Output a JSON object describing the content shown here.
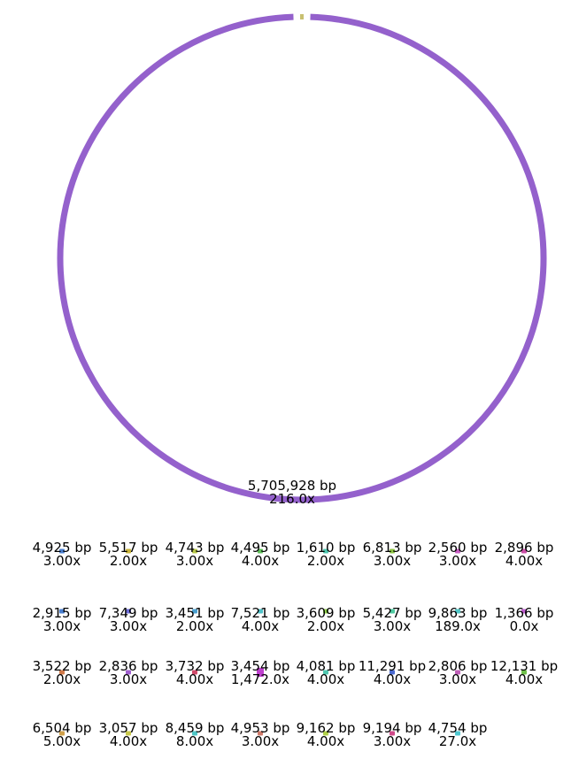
{
  "main_contig": {
    "length": "5,705,928 bp",
    "depth": "216.0x",
    "color": "#9461cc"
  },
  "small_contigs": [
    {
      "length": "4,925 bp",
      "depth": "3.00x",
      "color": "#4a7fd0"
    },
    {
      "length": "5,517 bp",
      "depth": "2.00x",
      "color": "#c9b43a"
    },
    {
      "length": "4,743 bp",
      "depth": "3.00x",
      "color": "#b8c84a"
    },
    {
      "length": "4,495 bp",
      "depth": "4.00x",
      "color": "#5fc05a"
    },
    {
      "length": "1,610 bp",
      "depth": "2.00x",
      "color": "#4fc7b0"
    },
    {
      "length": "6,813 bp",
      "depth": "3.00x",
      "color": "#8fc544"
    },
    {
      "length": "2,560 bp",
      "depth": "3.00x",
      "color": "#c95fc4"
    },
    {
      "length": "2,896 bp",
      "depth": "4.00x",
      "color": "#cc4fa8"
    },
    {
      "length": "2,915 bp",
      "depth": "3.00x",
      "color": "#4a7fd0"
    },
    {
      "length": "7,349 bp",
      "depth": "3.00x",
      "color": "#6a6ad6"
    },
    {
      "length": "3,451 bp",
      "depth": "2.00x",
      "color": "#4aa0d0"
    },
    {
      "length": "7,521 bp",
      "depth": "4.00x",
      "color": "#4fc2c8"
    },
    {
      "length": "3,609 bp",
      "depth": "2.00x",
      "color": "#8fd04a"
    },
    {
      "length": "5,427 bp",
      "depth": "3.00x",
      "color": "#4fc9a0"
    },
    {
      "length": "9,863 bp",
      "depth": "189.0x",
      "color": "#4fc7c7"
    },
    {
      "length": "1,366 bp",
      "depth": "0.0x",
      "color": "#c05fd0"
    },
    {
      "length": "3,522 bp",
      "depth": "2.00x",
      "color": "#d07a4a"
    },
    {
      "length": "2,836 bp",
      "depth": "3.00x",
      "color": "#a05fd0"
    },
    {
      "length": "3,732 bp",
      "depth": "4.00x",
      "color": "#d04a6a"
    },
    {
      "length": "3,454 bp",
      "depth": "1,472.0x",
      "color": "#c040d0"
    },
    {
      "length": "4,081 bp",
      "depth": "4.00x",
      "color": "#4fc7b0"
    },
    {
      "length": "11,291 bp",
      "depth": "4.00x",
      "color": "#4a6ad0"
    },
    {
      "length": "2,806 bp",
      "depth": "3.00x",
      "color": "#c05fb8"
    },
    {
      "length": "12,131 bp",
      "depth": "4.00x",
      "color": "#6fc04a"
    },
    {
      "length": "6,504 bp",
      "depth": "5.00x",
      "color": "#d0a04a"
    },
    {
      "length": "3,057 bp",
      "depth": "4.00x",
      "color": "#c8c84a"
    },
    {
      "length": "8,459 bp",
      "depth": "8.00x",
      "color": "#4fc7c7"
    },
    {
      "length": "4,953 bp",
      "depth": "3.00x",
      "color": "#d07a6a"
    },
    {
      "length": "9,162 bp",
      "depth": "4.00x",
      "color": "#b0d04a"
    },
    {
      "length": "9,194 bp",
      "depth": "3.00x",
      "color": "#d04a8a"
    },
    {
      "length": "4,754 bp",
      "depth": "27.0x",
      "color": "#4fc7d0"
    }
  ]
}
